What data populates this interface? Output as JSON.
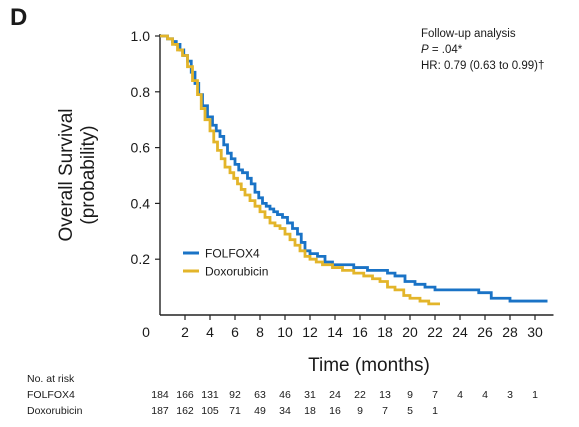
{
  "panel_label": "D",
  "annotation": {
    "line1": "Follow-up analysis",
    "p_symbol": "P",
    "p_rest": " = .04*",
    "line3": "HR: 0.79 (0.63 to 0.99)†"
  },
  "chart_data": {
    "type": "line",
    "subtype": "kaplan-meier step",
    "title": "",
    "xlabel": "Time (months)",
    "ylabel": "Overall Survival (probability)",
    "ylabel_lines": [
      "Overall Survival",
      "(probability)"
    ],
    "xlim": [
      0,
      31
    ],
    "ylim": [
      0,
      1.0
    ],
    "x_ticks": [
      0,
      2,
      4,
      6,
      8,
      10,
      12,
      14,
      16,
      18,
      20,
      22,
      24,
      26,
      28,
      30
    ],
    "y_ticks": [
      0.2,
      0.4,
      0.6,
      0.8,
      1.0
    ],
    "y_tick_labels": [
      "0.2",
      "0.4",
      "0.6",
      "0.8",
      "1.0"
    ],
    "grid": false,
    "legend_position": "lower-center",
    "series": [
      {
        "name": "FOLFOX4",
        "color": "#1a73c6",
        "points": [
          [
            0,
            1.0
          ],
          [
            0.3,
            1.0
          ],
          [
            0.6,
            0.99
          ],
          [
            1.0,
            0.98
          ],
          [
            1.3,
            0.97
          ],
          [
            1.6,
            0.95
          ],
          [
            1.9,
            0.93
          ],
          [
            2.2,
            0.91
          ],
          [
            2.5,
            0.87
          ],
          [
            2.8,
            0.83
          ],
          [
            3.1,
            0.79
          ],
          [
            3.4,
            0.75
          ],
          [
            3.8,
            0.71
          ],
          [
            4.2,
            0.68
          ],
          [
            4.5,
            0.66
          ],
          [
            4.8,
            0.64
          ],
          [
            5.1,
            0.61
          ],
          [
            5.4,
            0.58
          ],
          [
            5.7,
            0.56
          ],
          [
            6.0,
            0.54
          ],
          [
            6.3,
            0.52
          ],
          [
            6.6,
            0.51
          ],
          [
            7.0,
            0.49
          ],
          [
            7.3,
            0.47
          ],
          [
            7.6,
            0.44
          ],
          [
            7.9,
            0.42
          ],
          [
            8.2,
            0.4
          ],
          [
            8.5,
            0.39
          ],
          [
            8.8,
            0.38
          ],
          [
            9.1,
            0.37
          ],
          [
            9.4,
            0.36
          ],
          [
            9.8,
            0.35
          ],
          [
            10.2,
            0.33
          ],
          [
            10.6,
            0.31
          ],
          [
            11.0,
            0.29
          ],
          [
            11.3,
            0.26
          ],
          [
            11.6,
            0.23
          ],
          [
            12.0,
            0.22
          ],
          [
            12.6,
            0.21
          ],
          [
            13.2,
            0.19
          ],
          [
            13.8,
            0.18
          ],
          [
            14.6,
            0.18
          ],
          [
            15.5,
            0.17
          ],
          [
            16.6,
            0.16
          ],
          [
            17.3,
            0.16
          ],
          [
            18.2,
            0.15
          ],
          [
            18.8,
            0.14
          ],
          [
            19.6,
            0.12
          ],
          [
            20.4,
            0.11
          ],
          [
            21.2,
            0.1
          ],
          [
            22.0,
            0.09
          ],
          [
            24.0,
            0.09
          ],
          [
            25.5,
            0.08
          ],
          [
            26.5,
            0.06
          ],
          [
            28.0,
            0.05
          ],
          [
            29.0,
            0.05
          ],
          [
            31.0,
            0.05
          ]
        ]
      },
      {
        "name": "Doxorubicin",
        "color": "#e3b52a",
        "points": [
          [
            0,
            1.0
          ],
          [
            0.3,
            1.0
          ],
          [
            0.6,
            0.99
          ],
          [
            1.0,
            0.97
          ],
          [
            1.4,
            0.95
          ],
          [
            1.8,
            0.93
          ],
          [
            2.2,
            0.89
          ],
          [
            2.6,
            0.84
          ],
          [
            3.0,
            0.79
          ],
          [
            3.3,
            0.74
          ],
          [
            3.6,
            0.7
          ],
          [
            4.0,
            0.66
          ],
          [
            4.3,
            0.62
          ],
          [
            4.6,
            0.59
          ],
          [
            4.9,
            0.56
          ],
          [
            5.2,
            0.53
          ],
          [
            5.6,
            0.51
          ],
          [
            5.9,
            0.49
          ],
          [
            6.2,
            0.47
          ],
          [
            6.5,
            0.45
          ],
          [
            6.8,
            0.43
          ],
          [
            7.2,
            0.41
          ],
          [
            7.6,
            0.39
          ],
          [
            8.0,
            0.37
          ],
          [
            8.4,
            0.35
          ],
          [
            8.8,
            0.33
          ],
          [
            9.2,
            0.32
          ],
          [
            9.6,
            0.31
          ],
          [
            10.0,
            0.29
          ],
          [
            10.4,
            0.27
          ],
          [
            10.8,
            0.25
          ],
          [
            11.2,
            0.23
          ],
          [
            11.6,
            0.21
          ],
          [
            12.0,
            0.2
          ],
          [
            12.5,
            0.19
          ],
          [
            13.0,
            0.18
          ],
          [
            13.8,
            0.17
          ],
          [
            14.6,
            0.16
          ],
          [
            15.5,
            0.15
          ],
          [
            16.3,
            0.14
          ],
          [
            17.0,
            0.13
          ],
          [
            17.6,
            0.12
          ],
          [
            18.2,
            0.1
          ],
          [
            18.8,
            0.09
          ],
          [
            19.5,
            0.07
          ],
          [
            20.0,
            0.06
          ],
          [
            20.8,
            0.05
          ],
          [
            21.5,
            0.04
          ],
          [
            22.4,
            0.04
          ]
        ]
      }
    ]
  },
  "at_risk": {
    "title": "No. at risk",
    "times": [
      0,
      2,
      4,
      6,
      8,
      10,
      12,
      14,
      16,
      18,
      20,
      22,
      24,
      26,
      28,
      30
    ],
    "rows": [
      {
        "label": "FOLFOX4",
        "values": [
          "184",
          "166",
          "131",
          "92",
          "63",
          "46",
          "31",
          "24",
          "22",
          "13",
          "9",
          "7",
          "4",
          "4",
          "3",
          "1"
        ]
      },
      {
        "label": "Doxorubicin",
        "values": [
          "187",
          "162",
          "105",
          "71",
          "49",
          "34",
          "18",
          "16",
          "9",
          "7",
          "5",
          "1"
        ]
      }
    ]
  }
}
